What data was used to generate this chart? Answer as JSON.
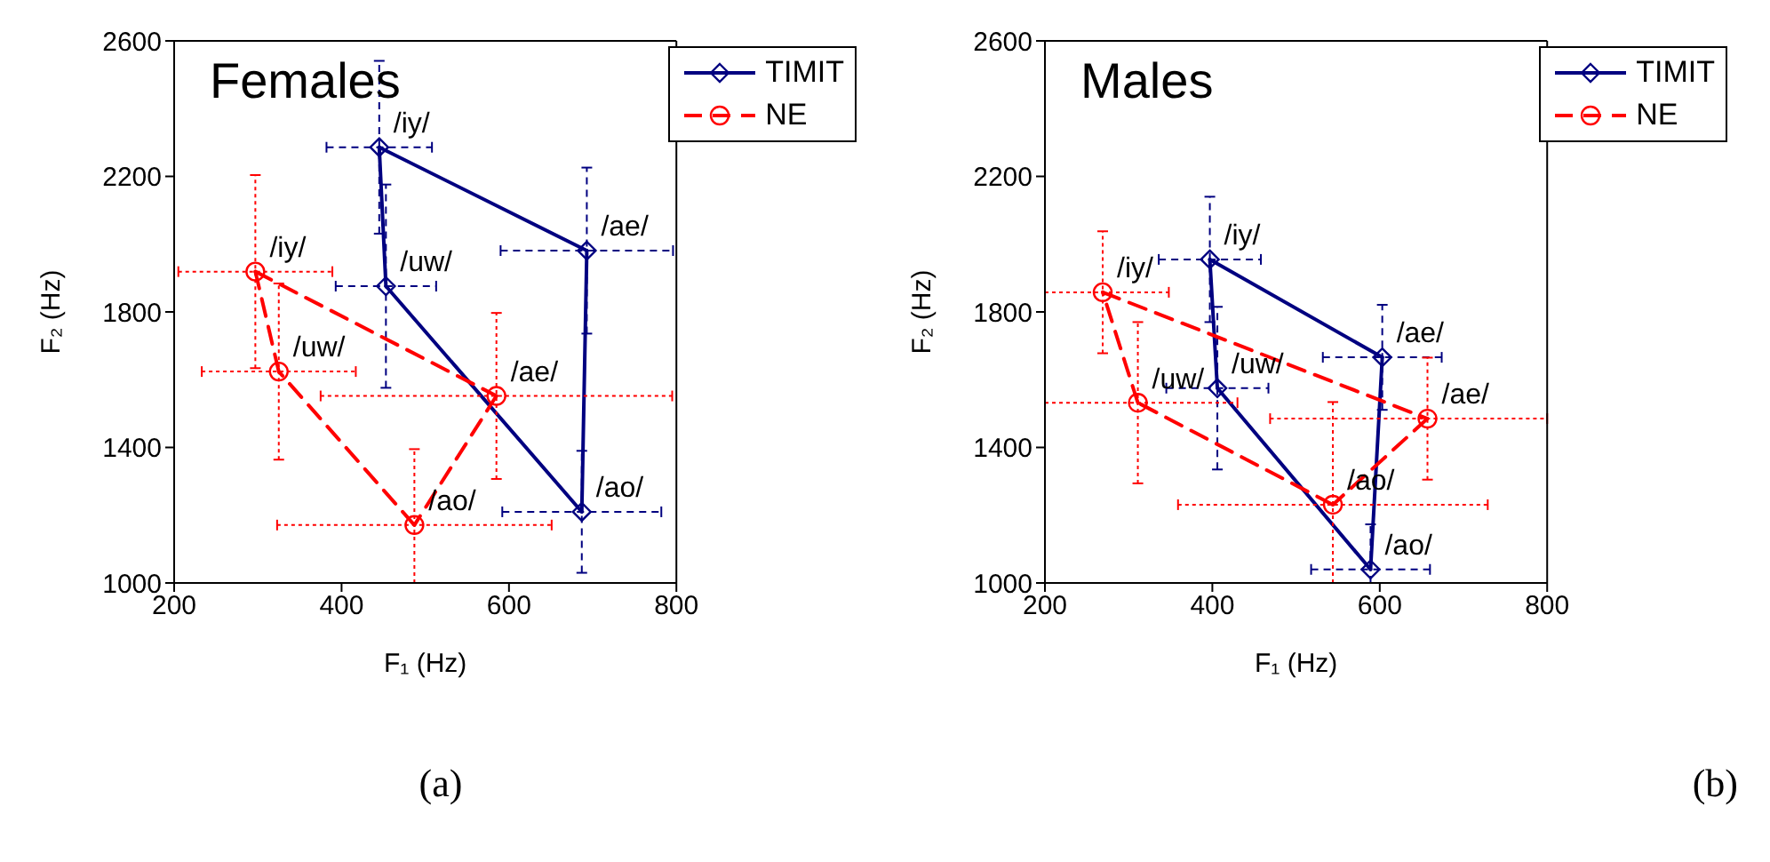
{
  "chart_data": [
    {
      "type": "scatter",
      "title": "Females",
      "xlabel": "F₁ (Hz)",
      "ylabel": "F₂ (Hz)",
      "xlim": [
        200,
        800
      ],
      "xticks": [
        200,
        400,
        600,
        800
      ],
      "ylim": [
        1000,
        2600
      ],
      "yticks": [
        1000,
        1400,
        1800,
        2200,
        2600
      ],
      "grid": false,
      "legend": "top right",
      "series": [
        {
          "name": "TIMIT",
          "color": "#000080",
          "marker": "diamond",
          "line_style": "solid",
          "x": [
            445,
            693,
            687,
            453
          ],
          "values": [
            2286,
            1981,
            1210,
            1876
          ],
          "errors": [
            255,
            245,
            180,
            300
          ],
          "xerrors": [
            63,
            103,
            95,
            60
          ]
        },
        {
          "name": "NE",
          "color": "#ff0000",
          "marker": "circle",
          "line_style": "dashed",
          "x": [
            297,
            585,
            487,
            325
          ],
          "values": [
            1919,
            1552,
            1171,
            1624
          ],
          "errors": [
            285,
            245,
            [
              1000,
              1395
            ],
            260
          ],
          "xerrors": [
            92,
            210,
            164,
            92
          ]
        }
      ],
      "annotations": [
        {
          "text": "/iy/",
          "x": 445,
          "y": 2286
        },
        {
          "text": "/ae/",
          "x": 693,
          "y": 1981
        },
        {
          "text": "/ao/",
          "x": 687,
          "y": 1210
        },
        {
          "text": "/uw/",
          "x": 453,
          "y": 1876
        },
        {
          "text": "/iy/",
          "x": 297,
          "y": 1919
        },
        {
          "text": "/ae/",
          "x": 585,
          "y": 1552
        },
        {
          "text": "/ao/",
          "x": 487,
          "y": 1171
        },
        {
          "text": "/uw/",
          "x": 325,
          "y": 1624
        },
        "(a)"
      ]
    },
    {
      "type": "scatter",
      "title": "Males",
      "xlabel": "F₁ (Hz)",
      "ylabel": "F₂ (Hz)",
      "xlim": [
        200,
        800
      ],
      "xticks": [
        200,
        400,
        600,
        800
      ],
      "ylim": [
        1000,
        2600
      ],
      "yticks": [
        1000,
        1400,
        1800,
        2200,
        2600
      ],
      "grid": false,
      "legend": "top right",
      "series": [
        {
          "name": "TIMIT",
          "color": "#000080",
          "marker": "diamond",
          "line_style": "solid",
          "x": [
            397,
            603,
            589,
            406
          ],
          "values": [
            1955,
            1666,
            1040,
            1575
          ],
          "errors": [
            185,
            155,
            [
              1000,
              1173
            ],
            240
          ],
          "xerrors": [
            61,
            71,
            71,
            61
          ]
        },
        {
          "name": "NE",
          "color": "#ff0000",
          "marker": "circle",
          "line_style": "dashed",
          "x": [
            269,
            657,
            544,
            311
          ],
          "values": [
            1858,
            1485,
            1231,
            1532
          ],
          "errors": [
            180,
            180,
            [
              1000,
              1534
            ],
            238
          ],
          "xerrors": [
            [
              200,
              348
            ],
            [
              469,
              800
            ],
            185,
            [
              200,
              430
            ]
          ]
        }
      ],
      "annotations": [
        {
          "text": "/iy/",
          "x": 397,
          "y": 1955
        },
        {
          "text": "/ae/",
          "x": 603,
          "y": 1666
        },
        {
          "text": "/ao/",
          "x": 589,
          "y": 1040
        },
        {
          "text": "/uw/",
          "x": 406,
          "y": 1575
        },
        {
          "text": "/iy/",
          "x": 269,
          "y": 1858
        },
        {
          "text": "/ae/",
          "x": 657,
          "y": 1485
        },
        {
          "text": "/ao/",
          "x": 544,
          "y": 1231
        },
        {
          "text": "/uw/",
          "x": 311,
          "y": 1532
        },
        "(b)"
      ]
    }
  ]
}
